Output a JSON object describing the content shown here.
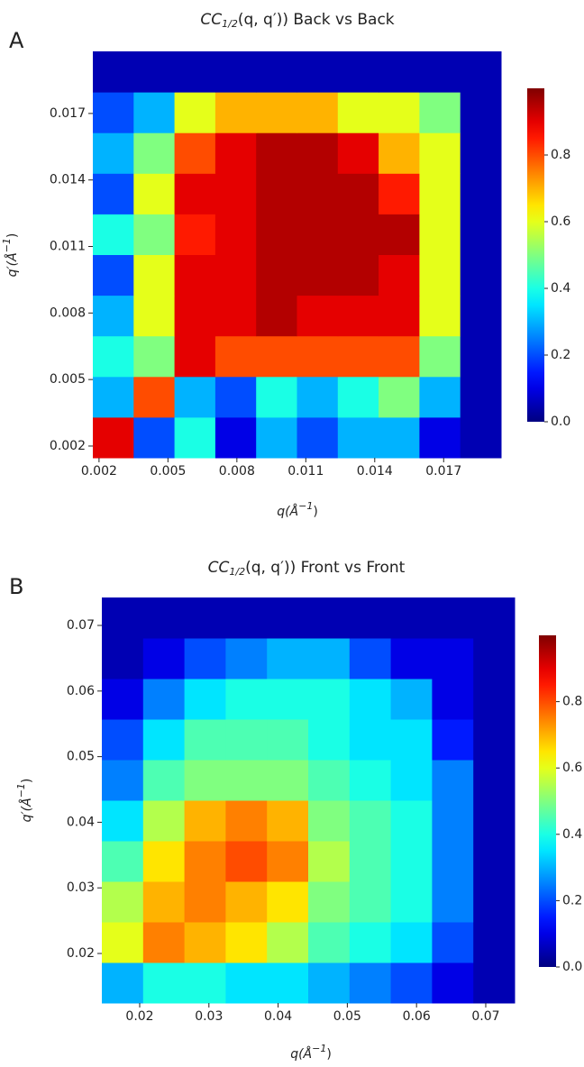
{
  "chart_data": [
    {
      "type": "heatmap",
      "panel": "A",
      "colormap": "jet",
      "title": {
        "main": "CC",
        "sub": "1/2",
        "rest": "(q, q′)) Back vs Back"
      },
      "xlabel": {
        "main": "q(Å",
        "sup": "−1",
        "end": ")"
      },
      "ylabel": {
        "main": "q′(Å",
        "sup": "−1",
        "end": ")"
      },
      "xlim": [
        0.00173,
        0.0195
      ],
      "ylim": [
        0.00147,
        0.0198
      ],
      "xticks": [
        0.002,
        0.005,
        0.008,
        0.011,
        0.014,
        0.017
      ],
      "yticks": [
        0.002,
        0.005,
        0.008,
        0.011,
        0.014,
        0.017
      ],
      "z": [
        [
          0.9,
          0.2,
          0.4,
          0.1,
          0.3,
          0.2,
          0.3,
          0.3,
          0.1,
          0.05
        ],
        [
          0.3,
          0.8,
          0.3,
          0.2,
          0.4,
          0.3,
          0.4,
          0.5,
          0.3,
          0.05
        ],
        [
          0.4,
          0.5,
          0.9,
          0.8,
          0.8,
          0.8,
          0.8,
          0.8,
          0.5,
          0.05
        ],
        [
          0.3,
          0.6,
          0.9,
          0.9,
          0.95,
          0.9,
          0.9,
          0.9,
          0.6,
          0.05
        ],
        [
          0.2,
          0.6,
          0.9,
          0.9,
          0.95,
          0.95,
          0.95,
          0.9,
          0.6,
          0.05
        ],
        [
          0.4,
          0.5,
          0.85,
          0.9,
          0.95,
          0.95,
          0.95,
          0.95,
          0.6,
          0.05
        ],
        [
          0.2,
          0.6,
          0.9,
          0.9,
          0.95,
          0.95,
          0.95,
          0.85,
          0.6,
          0.05
        ],
        [
          0.3,
          0.5,
          0.8,
          0.9,
          0.95,
          0.95,
          0.9,
          0.7,
          0.6,
          0.05
        ],
        [
          0.2,
          0.3,
          0.6,
          0.7,
          0.7,
          0.7,
          0.6,
          0.6,
          0.5,
          0.05
        ],
        [
          0.05,
          0.05,
          0.05,
          0.05,
          0.05,
          0.05,
          0.05,
          0.05,
          0.05,
          0.05
        ]
      ],
      "colorbar": {
        "lim": [
          0,
          1
        ],
        "ticks": [
          {
            "value": 0,
            "label": "0.0"
          },
          0.2,
          0.4,
          0.6,
          0.8
        ]
      }
    },
    {
      "type": "heatmap",
      "panel": "B",
      "colormap": "jet",
      "title": {
        "main": "CC",
        "sub": "1/2",
        "rest": "(q, q′)) Front vs Front"
      },
      "xlabel": {
        "main": "q(Å",
        "sup": "−1",
        "end": ")"
      },
      "ylabel": {
        "main": "q′(Å",
        "sup": "−1",
        "end": ")"
      },
      "xlim": [
        0.01453,
        0.07417
      ],
      "ylim": [
        0.01245,
        0.07426
      ],
      "xticks": [
        0.02,
        0.03,
        0.04,
        0.05,
        0.06,
        0.07
      ],
      "yticks": [
        0.02,
        0.03,
        0.04,
        0.05,
        0.06,
        0.07
      ],
      "z": [
        [
          0.3,
          0.4,
          0.4,
          0.35,
          0.35,
          0.3,
          0.25,
          0.2,
          0.1,
          0.05
        ],
        [
          0.6,
          0.75,
          0.7,
          0.65,
          0.55,
          0.45,
          0.4,
          0.35,
          0.2,
          0.05
        ],
        [
          0.55,
          0.7,
          0.75,
          0.7,
          0.65,
          0.5,
          0.45,
          0.4,
          0.25,
          0.05
        ],
        [
          0.45,
          0.65,
          0.75,
          0.8,
          0.75,
          0.55,
          0.45,
          0.4,
          0.25,
          0.05
        ],
        [
          0.35,
          0.55,
          0.7,
          0.75,
          0.7,
          0.5,
          0.45,
          0.4,
          0.25,
          0.05
        ],
        [
          0.25,
          0.45,
          0.5,
          0.5,
          0.5,
          0.45,
          0.4,
          0.35,
          0.25,
          0.05
        ],
        [
          0.2,
          0.35,
          0.45,
          0.45,
          0.45,
          0.4,
          0.35,
          0.35,
          0.15,
          0.05
        ],
        [
          0.1,
          0.25,
          0.35,
          0.4,
          0.4,
          0.4,
          0.35,
          0.3,
          0.1,
          0.05
        ],
        [
          0.05,
          0.1,
          0.2,
          0.25,
          0.3,
          0.3,
          0.2,
          0.1,
          0.1,
          0.05
        ],
        [
          0.05,
          0.05,
          0.05,
          0.05,
          0.05,
          0.05,
          0.05,
          0.05,
          0.05,
          0.05
        ]
      ],
      "colorbar": {
        "lim": [
          0,
          1
        ],
        "ticks": [
          {
            "value": 0,
            "label": "0.0"
          },
          0.2,
          0.4,
          0.6,
          0.8
        ]
      }
    }
  ]
}
